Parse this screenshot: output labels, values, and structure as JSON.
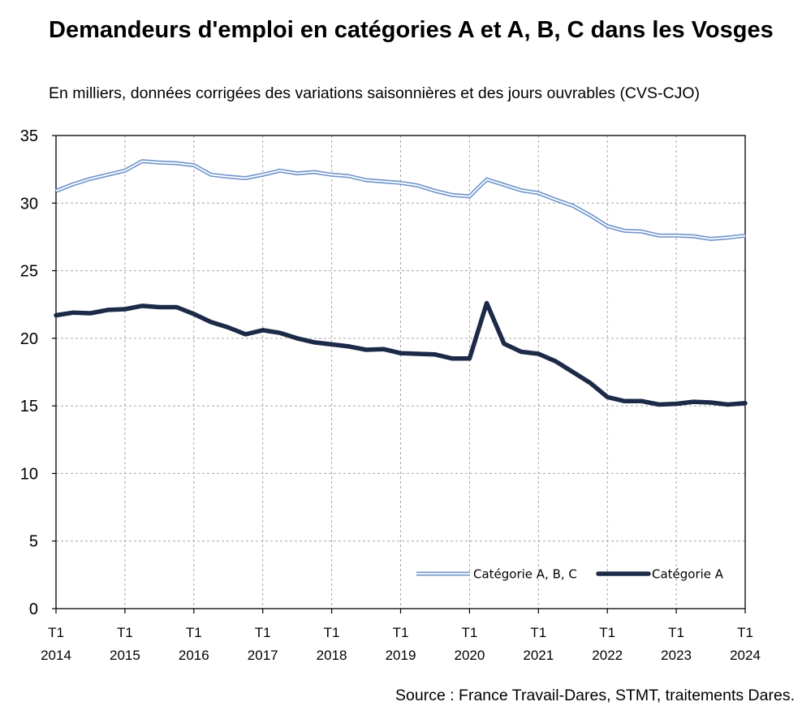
{
  "title": "Demandeurs d'emploi en catégories A et A, B, C dans les Vosges",
  "subtitle": "En milliers, données corrigées des variations saisonnières et des jours ouvrables (CVS-CJO)",
  "source": "Source : France Travail-Dares, STMT, traitements Dares.",
  "colors": {
    "abc": "#6f94cc",
    "a": "#1c2a48"
  },
  "chart_data": {
    "type": "line",
    "title": "Demandeurs d'emploi en catégories A et A, B, C dans les Vosges",
    "subtitle": "En milliers, données corrigées des variations saisonnières et des jours ouvrables (CVS-CJO)",
    "xlabel": "",
    "ylabel": "",
    "ylim": [
      0,
      35
    ],
    "yticks": [
      0,
      5,
      10,
      15,
      20,
      25,
      30,
      35
    ],
    "grid": true,
    "legend_position": "bottom-right",
    "x_tick_labels": [
      {
        "quarter": "T1",
        "year": "2014"
      },
      {
        "quarter": "T1",
        "year": "2015"
      },
      {
        "quarter": "T1",
        "year": "2016"
      },
      {
        "quarter": "T1",
        "year": "2017"
      },
      {
        "quarter": "T1",
        "year": "2018"
      },
      {
        "quarter": "T1",
        "year": "2019"
      },
      {
        "quarter": "T1",
        "year": "2020"
      },
      {
        "quarter": "T1",
        "year": "2021"
      },
      {
        "quarter": "T1",
        "year": "2022"
      },
      {
        "quarter": "T1",
        "year": "2023"
      },
      {
        "quarter": "T1",
        "year": "2024"
      }
    ],
    "x": [
      "2014T1",
      "2014T2",
      "2014T3",
      "2014T4",
      "2015T1",
      "2015T2",
      "2015T3",
      "2015T4",
      "2016T1",
      "2016T2",
      "2016T3",
      "2016T4",
      "2017T1",
      "2017T2",
      "2017T3",
      "2017T4",
      "2018T1",
      "2018T2",
      "2018T3",
      "2018T4",
      "2019T1",
      "2019T2",
      "2019T3",
      "2019T4",
      "2020T1",
      "2020T2",
      "2020T3",
      "2020T4",
      "2021T1",
      "2021T2",
      "2021T3",
      "2021T4",
      "2022T1",
      "2022T2",
      "2022T3",
      "2022T4",
      "2023T1",
      "2023T2",
      "2023T3",
      "2023T4",
      "2024T1"
    ],
    "series": [
      {
        "name": "Catégorie A, B, C",
        "style": "double",
        "values": [
          30.9,
          31.4,
          31.8,
          32.1,
          32.4,
          33.1,
          33.0,
          32.95,
          32.8,
          32.1,
          31.95,
          31.85,
          32.1,
          32.4,
          32.2,
          32.3,
          32.1,
          32.0,
          31.7,
          31.6,
          31.5,
          31.3,
          30.9,
          30.6,
          30.5,
          31.75,
          31.35,
          30.95,
          30.75,
          30.25,
          29.8,
          29.1,
          28.3,
          27.95,
          27.9,
          27.6,
          27.6,
          27.55,
          27.35,
          27.45,
          27.6
        ]
      },
      {
        "name": "Catégorie A",
        "style": "thick",
        "values": [
          21.7,
          21.9,
          21.85,
          22.1,
          22.15,
          22.4,
          22.3,
          22.3,
          21.8,
          21.2,
          20.8,
          20.3,
          20.6,
          20.4,
          20.0,
          19.7,
          19.55,
          19.4,
          19.15,
          19.2,
          18.9,
          18.85,
          18.8,
          18.5,
          18.5,
          22.6,
          19.6,
          19.0,
          18.85,
          18.3,
          17.5,
          16.7,
          15.65,
          15.35,
          15.35,
          15.1,
          15.15,
          15.3,
          15.25,
          15.1,
          15.2
        ]
      }
    ]
  }
}
